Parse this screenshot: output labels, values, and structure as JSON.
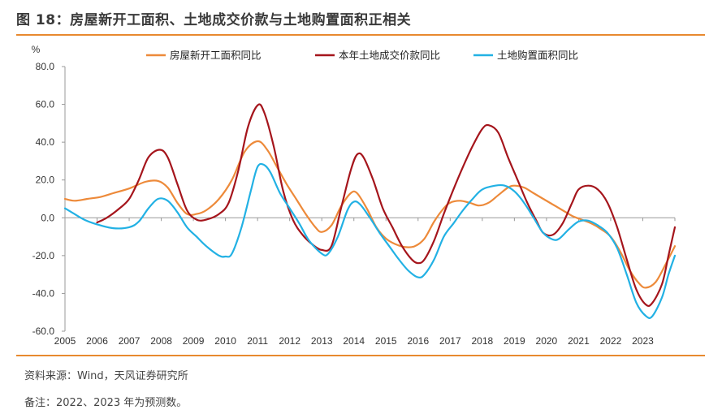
{
  "header": {
    "title": "图 18：房屋新开工面积、土地成交价款与土地购置面积正相关"
  },
  "footer": {
    "source": "资料来源：Wind，天风证券研究所",
    "note": "备注：2022、2023 年为预测数。"
  },
  "chart_data": {
    "type": "line",
    "ylabel": "%",
    "ylim": [
      -60,
      80
    ],
    "yticks": [
      -60,
      -40,
      -20,
      0,
      20,
      40,
      60,
      80
    ],
    "ytick_labels": [
      "-60.0",
      "-40.0",
      "-20.0",
      "0.0",
      "20.0",
      "40.0",
      "60.0",
      "80.0"
    ],
    "xlim": [
      2005,
      2024
    ],
    "xticks": [
      2005,
      2006,
      2007,
      2008,
      2009,
      2010,
      2011,
      2012,
      2013,
      2014,
      2015,
      2016,
      2017,
      2018,
      2019,
      2020,
      2021,
      2022,
      2023
    ],
    "grid": false,
    "legend": "top",
    "colors": {
      "accent": "#e8892f",
      "text": "#333333",
      "axis": "#999999"
    },
    "series": [
      {
        "name": "房屋新开工面积同比",
        "color": "#ed8a3a",
        "points": [
          [
            2005.0,
            10
          ],
          [
            2005.3,
            9
          ],
          [
            2005.7,
            10
          ],
          [
            2006.1,
            11
          ],
          [
            2006.5,
            13
          ],
          [
            2007.0,
            15.5
          ],
          [
            2007.5,
            19
          ],
          [
            2007.9,
            19.5
          ],
          [
            2008.2,
            16
          ],
          [
            2008.5,
            8
          ],
          [
            2008.8,
            2
          ],
          [
            2009.1,
            2
          ],
          [
            2009.4,
            4
          ],
          [
            2009.8,
            10
          ],
          [
            2010.2,
            20
          ],
          [
            2010.6,
            35
          ],
          [
            2011.0,
            40.5
          ],
          [
            2011.3,
            36
          ],
          [
            2011.6,
            27
          ],
          [
            2011.9,
            18
          ],
          [
            2012.2,
            10
          ],
          [
            2012.5,
            2
          ],
          [
            2012.8,
            -5
          ],
          [
            2013.0,
            -7.5
          ],
          [
            2013.3,
            -4
          ],
          [
            2013.6,
            6
          ],
          [
            2013.9,
            13
          ],
          [
            2014.1,
            13
          ],
          [
            2014.4,
            5
          ],
          [
            2014.7,
            -5
          ],
          [
            2015.0,
            -11
          ],
          [
            2015.3,
            -14
          ],
          [
            2015.6,
            -15.5
          ],
          [
            2015.9,
            -15
          ],
          [
            2016.2,
            -11
          ],
          [
            2016.5,
            -2
          ],
          [
            2016.8,
            5
          ],
          [
            2017.0,
            8
          ],
          [
            2017.3,
            9
          ],
          [
            2017.6,
            8
          ],
          [
            2017.9,
            6.5
          ],
          [
            2018.2,
            8
          ],
          [
            2018.5,
            12
          ],
          [
            2018.8,
            16
          ],
          [
            2019.0,
            17
          ],
          [
            2019.3,
            16
          ],
          [
            2019.6,
            13
          ],
          [
            2019.9,
            10
          ],
          [
            2020.2,
            7
          ],
          [
            2020.5,
            4
          ],
          [
            2020.8,
            1
          ],
          [
            2021.1,
            -1
          ],
          [
            2021.4,
            -3
          ],
          [
            2021.7,
            -6
          ],
          [
            2022.0,
            -10
          ],
          [
            2022.3,
            -18
          ],
          [
            2022.6,
            -28
          ],
          [
            2022.9,
            -35
          ],
          [
            2023.1,
            -37
          ],
          [
            2023.4,
            -34
          ],
          [
            2023.7,
            -25
          ],
          [
            2024.0,
            -15
          ]
        ]
      },
      {
        "name": "本年土地成交价款同比",
        "color": "#a5151c",
        "points": [
          [
            2006.0,
            -2.5
          ],
          [
            2006.3,
            0
          ],
          [
            2006.7,
            5
          ],
          [
            2007.0,
            10
          ],
          [
            2007.3,
            20
          ],
          [
            2007.6,
            32
          ],
          [
            2007.95,
            36
          ],
          [
            2008.2,
            32
          ],
          [
            2008.5,
            18
          ],
          [
            2008.8,
            4
          ],
          [
            2009.1,
            -1
          ],
          [
            2009.4,
            -1
          ],
          [
            2009.8,
            2
          ],
          [
            2010.1,
            8
          ],
          [
            2010.4,
            25
          ],
          [
            2010.7,
            48
          ],
          [
            2011.0,
            59.5
          ],
          [
            2011.2,
            56
          ],
          [
            2011.5,
            38
          ],
          [
            2011.8,
            14
          ],
          [
            2012.1,
            -1
          ],
          [
            2012.4,
            -9
          ],
          [
            2012.7,
            -14
          ],
          [
            2013.0,
            -17
          ],
          [
            2013.3,
            -15
          ],
          [
            2013.6,
            5
          ],
          [
            2013.9,
            25
          ],
          [
            2014.1,
            33.5
          ],
          [
            2014.3,
            32
          ],
          [
            2014.6,
            20
          ],
          [
            2014.9,
            5
          ],
          [
            2015.2,
            -5
          ],
          [
            2015.5,
            -15
          ],
          [
            2015.8,
            -22
          ],
          [
            2016.0,
            -24
          ],
          [
            2016.2,
            -22
          ],
          [
            2016.5,
            -12
          ],
          [
            2016.8,
            2
          ],
          [
            2017.1,
            15
          ],
          [
            2017.4,
            27
          ],
          [
            2017.7,
            38
          ],
          [
            2018.0,
            47
          ],
          [
            2018.2,
            49
          ],
          [
            2018.5,
            45
          ],
          [
            2018.8,
            32
          ],
          [
            2019.1,
            20
          ],
          [
            2019.4,
            8
          ],
          [
            2019.7,
            -2
          ],
          [
            2019.9,
            -8
          ],
          [
            2020.2,
            -9
          ],
          [
            2020.5,
            -3
          ],
          [
            2020.8,
            8
          ],
          [
            2021.0,
            15
          ],
          [
            2021.3,
            17
          ],
          [
            2021.6,
            15
          ],
          [
            2021.9,
            8
          ],
          [
            2022.2,
            -5
          ],
          [
            2022.5,
            -22
          ],
          [
            2022.8,
            -38
          ],
          [
            2023.1,
            -46
          ],
          [
            2023.3,
            -45
          ],
          [
            2023.6,
            -35
          ],
          [
            2023.8,
            -20
          ],
          [
            2024.0,
            -5
          ]
        ]
      },
      {
        "name": "土地购置面积同比",
        "color": "#22b1e4",
        "points": [
          [
            2005.0,
            5
          ],
          [
            2005.2,
            3
          ],
          [
            2005.6,
            -1
          ],
          [
            2006.0,
            -3.5
          ],
          [
            2006.5,
            -5.5
          ],
          [
            2007.0,
            -5
          ],
          [
            2007.3,
            -2
          ],
          [
            2007.6,
            5
          ],
          [
            2007.9,
            10
          ],
          [
            2008.2,
            9
          ],
          [
            2008.5,
            3
          ],
          [
            2008.8,
            -5
          ],
          [
            2009.1,
            -10
          ],
          [
            2009.4,
            -15
          ],
          [
            2009.8,
            -20
          ],
          [
            2010.0,
            -20.5
          ],
          [
            2010.2,
            -19
          ],
          [
            2010.5,
            -5
          ],
          [
            2010.8,
            15
          ],
          [
            2011.0,
            27
          ],
          [
            2011.2,
            28
          ],
          [
            2011.4,
            24
          ],
          [
            2011.7,
            13
          ],
          [
            2012.0,
            5
          ],
          [
            2012.3,
            -3
          ],
          [
            2012.6,
            -12
          ],
          [
            2013.0,
            -19
          ],
          [
            2013.2,
            -19
          ],
          [
            2013.5,
            -10
          ],
          [
            2013.8,
            4
          ],
          [
            2014.0,
            8.5
          ],
          [
            2014.2,
            7
          ],
          [
            2014.5,
            0
          ],
          [
            2014.8,
            -8
          ],
          [
            2015.1,
            -15
          ],
          [
            2015.4,
            -22
          ],
          [
            2015.7,
            -28
          ],
          [
            2016.0,
            -31.5
          ],
          [
            2016.2,
            -30
          ],
          [
            2016.5,
            -22
          ],
          [
            2016.8,
            -10
          ],
          [
            2017.1,
            -3
          ],
          [
            2017.4,
            4
          ],
          [
            2017.7,
            10
          ],
          [
            2018.0,
            15
          ],
          [
            2018.4,
            17
          ],
          [
            2018.7,
            17
          ],
          [
            2019.0,
            14
          ],
          [
            2019.3,
            8
          ],
          [
            2019.6,
            0
          ],
          [
            2019.9,
            -8
          ],
          [
            2020.2,
            -11.5
          ],
          [
            2020.4,
            -11
          ],
          [
            2020.7,
            -6
          ],
          [
            2021.0,
            -2
          ],
          [
            2021.3,
            -1.5
          ],
          [
            2021.6,
            -4
          ],
          [
            2021.9,
            -8
          ],
          [
            2022.2,
            -16
          ],
          [
            2022.5,
            -30
          ],
          [
            2022.8,
            -45
          ],
          [
            2023.1,
            -52
          ],
          [
            2023.3,
            -52
          ],
          [
            2023.6,
            -42
          ],
          [
            2023.8,
            -30
          ],
          [
            2024.0,
            -20
          ]
        ]
      }
    ]
  }
}
